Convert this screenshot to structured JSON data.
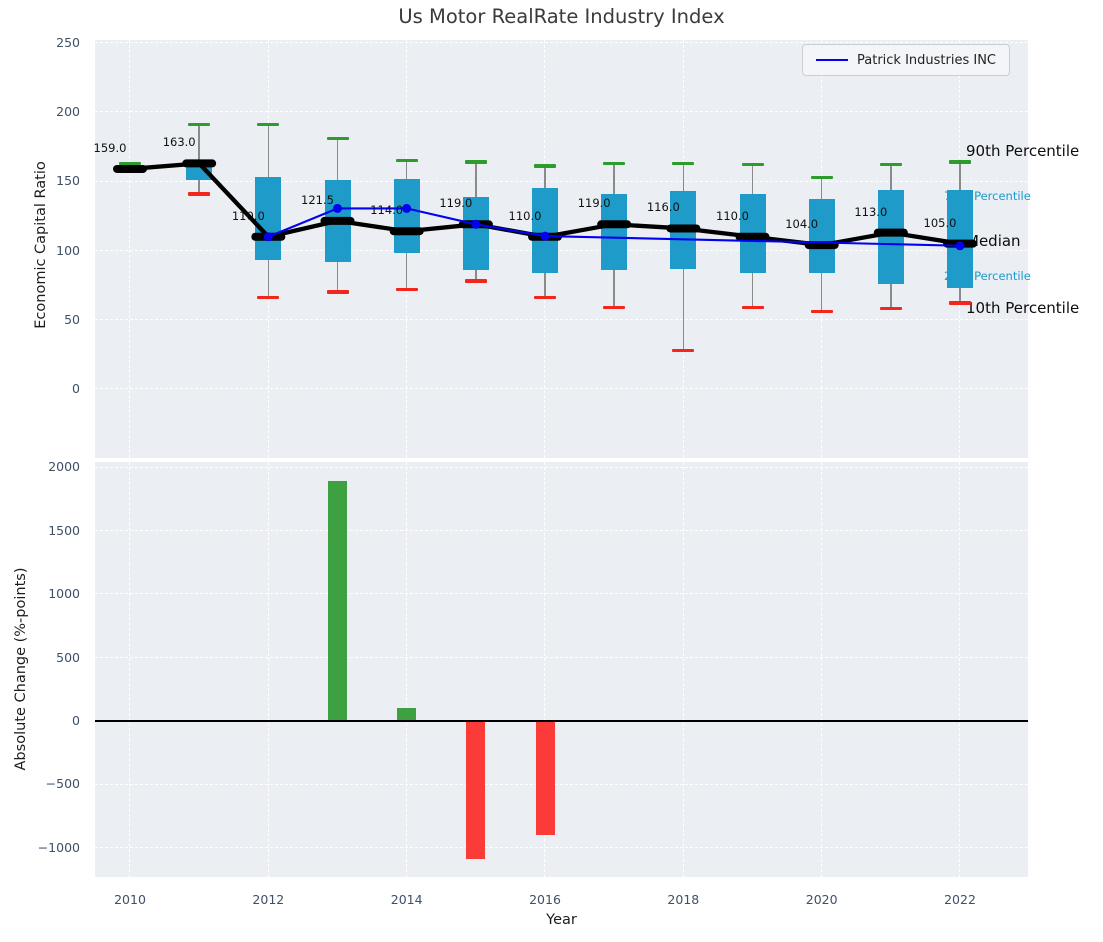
{
  "chart_data": {
    "type": "boxplot+line+bar",
    "title": "Us Motor RealRate Industry Index",
    "xlabel": "Year",
    "xticks": [
      2010,
      2012,
      2014,
      2016,
      2018,
      2020,
      2022
    ],
    "legend": {
      "label": "Patrick Industries INC",
      "position": "upper right"
    },
    "colors": {
      "plot_bg": "#ebeef2",
      "grid": "#ffffff",
      "box": "#1f9bc9",
      "whisker": "#8a8a8a",
      "cap_top": "#2d9c2d",
      "cap_bottom": "#f3261b",
      "median": "#000000",
      "line": "#0202f0",
      "bar_positive": "#3da041",
      "bar_negative": "#fb3b38",
      "tick_text": "#3f5066",
      "minor_label": "#1f9bc9"
    },
    "top": {
      "ylabel": "Economic Capital Ratio",
      "yticks": [
        250,
        200,
        150,
        100,
        50,
        0
      ],
      "ylim": [
        -50,
        252
      ],
      "grid": "white dashed",
      "boxes": [
        {
          "year": 2010,
          "p90": 163,
          "q3": 160.5,
          "median": 159,
          "q1": 158,
          "p10": 158,
          "label": "159.0"
        },
        {
          "year": 2011,
          "p90": 191,
          "q3": 164,
          "median": 163,
          "q1": 151,
          "p10": 141,
          "label": "163.0"
        },
        {
          "year": 2012,
          "p90": 191,
          "q3": 153,
          "median": 110,
          "q1": 93,
          "p10": 66,
          "label": "110.0"
        },
        {
          "year": 2013,
          "p90": 181,
          "q3": 151,
          "median": 121.5,
          "q1": 92,
          "p10": 70,
          "label": "121.5"
        },
        {
          "year": 2014,
          "p90": 165,
          "q3": 152,
          "median": 114,
          "q1": 98,
          "p10": 72,
          "label": "114.0"
        },
        {
          "year": 2015,
          "p90": 164,
          "q3": 139,
          "median": 119,
          "q1": 86,
          "p10": 78,
          "label": "119.0"
        },
        {
          "year": 2016,
          "p90": 161,
          "q3": 145,
          "median": 110,
          "q1": 84,
          "p10": 66,
          "label": "110.0"
        },
        {
          "year": 2017,
          "p90": 163,
          "q3": 141,
          "median": 119,
          "q1": 86,
          "p10": 59,
          "label": "119.0"
        },
        {
          "year": 2018,
          "p90": 163,
          "q3": 143,
          "median": 116,
          "q1": 87,
          "p10": 28,
          "label": "116.0"
        },
        {
          "year": 2019,
          "p90": 162,
          "q3": 141,
          "median": 110,
          "q1": 84,
          "p10": 59,
          "label": "110.0"
        },
        {
          "year": 2020,
          "p90": 153,
          "q3": 137,
          "median": 104,
          "q1": 84,
          "p10": 56,
          "label": "104.0"
        },
        {
          "year": 2021,
          "p90": 162,
          "q3": 144,
          "median": 113,
          "q1": 76,
          "p10": 58,
          "label": "113.0"
        },
        {
          "year": 2022,
          "p90": 164,
          "q3": 144,
          "median": 105,
          "q1": 73,
          "p10": 62,
          "label": "105.0"
        }
      ],
      "series": {
        "name": "Patrick Industries INC",
        "points": [
          {
            "year": 2012,
            "value": 110
          },
          {
            "year": 2013,
            "value": 130.5
          },
          {
            "year": 2014,
            "value": 130.5
          },
          {
            "year": 2015,
            "value": 119
          },
          {
            "year": 2016,
            "value": 110.5
          },
          {
            "year": 2022,
            "value": 103.5
          }
        ]
      },
      "right_labels": [
        {
          "label": "90th Percentile",
          "value": 171,
          "style": "major"
        },
        {
          "label": "75th Percentile",
          "value": 139,
          "style": "minor"
        },
        {
          "label": "Median",
          "value": 106,
          "style": "major"
        },
        {
          "label": "25th Percentile",
          "value": 81,
          "style": "minor"
        },
        {
          "label": "10th Percentile",
          "value": 57.5,
          "style": "major"
        }
      ]
    },
    "bottom": {
      "ylabel": "Absolute Change (%-points)",
      "yticks": [
        2000,
        1500,
        1000,
        500,
        0,
        -500,
        -1000
      ],
      "ylim": [
        -1230,
        2050
      ],
      "bars": [
        {
          "year": 2013,
          "value": 1890
        },
        {
          "year": 2014,
          "value": 100
        },
        {
          "year": 2015,
          "value": -1090
        },
        {
          "year": 2016,
          "value": -900
        }
      ]
    }
  }
}
